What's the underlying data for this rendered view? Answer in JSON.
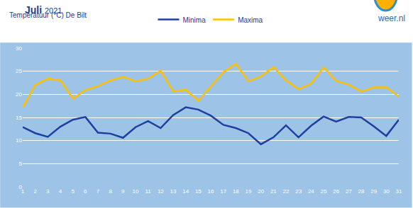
{
  "chart_data": {
    "type": "line",
    "title": "Juli 2021",
    "subtitle": "Temperatuur (°C) De Bilt",
    "annotations": [
      "weer.nl"
    ],
    "x": [
      1,
      2,
      3,
      4,
      5,
      6,
      7,
      8,
      9,
      10,
      11,
      12,
      13,
      14,
      15,
      16,
      17,
      18,
      19,
      20,
      21,
      22,
      23,
      24,
      25,
      26,
      27,
      28,
      29,
      30,
      31
    ],
    "series": [
      {
        "name": "Minima",
        "color": "#1f3fa0",
        "values": [
          12.9,
          11.6,
          10.8,
          13,
          14.5,
          15.1,
          11.7,
          11.5,
          10.6,
          12.9,
          14.2,
          12.7,
          15.5,
          17.2,
          16.7,
          15.4,
          13.4,
          12.7,
          11.6,
          9.2,
          10.7,
          13.3,
          10.7,
          13.2,
          15.2,
          14.1,
          15.1,
          15,
          13.1,
          11,
          14.5
        ]
      },
      {
        "name": "Maxima",
        "color": "#ffc000",
        "values": [
          17.2,
          22,
          23.4,
          23,
          19.1,
          20.9,
          21.8,
          23,
          23.8,
          22.8,
          23.4,
          25.1,
          20.6,
          21,
          18.6,
          21.7,
          24.8,
          26.6,
          22.8,
          23.9,
          25.9,
          23,
          21.1,
          22.3,
          25.8,
          22.9,
          22.1,
          20.6,
          21.5,
          21.5,
          19.5
        ]
      }
    ],
    "xlim": [
      1,
      31
    ],
    "xticks": [
      1,
      2,
      3,
      4,
      5,
      6,
      7,
      8,
      9,
      10,
      11,
      12,
      13,
      14,
      15,
      16,
      17,
      18,
      19,
      20,
      21,
      22,
      23,
      24,
      25,
      26,
      27,
      28,
      29,
      30,
      31
    ],
    "ylim": [
      0,
      30
    ],
    "yticks": [
      0,
      5,
      10,
      15,
      20,
      25,
      30
    ],
    "grid": true,
    "legend": "top"
  }
}
